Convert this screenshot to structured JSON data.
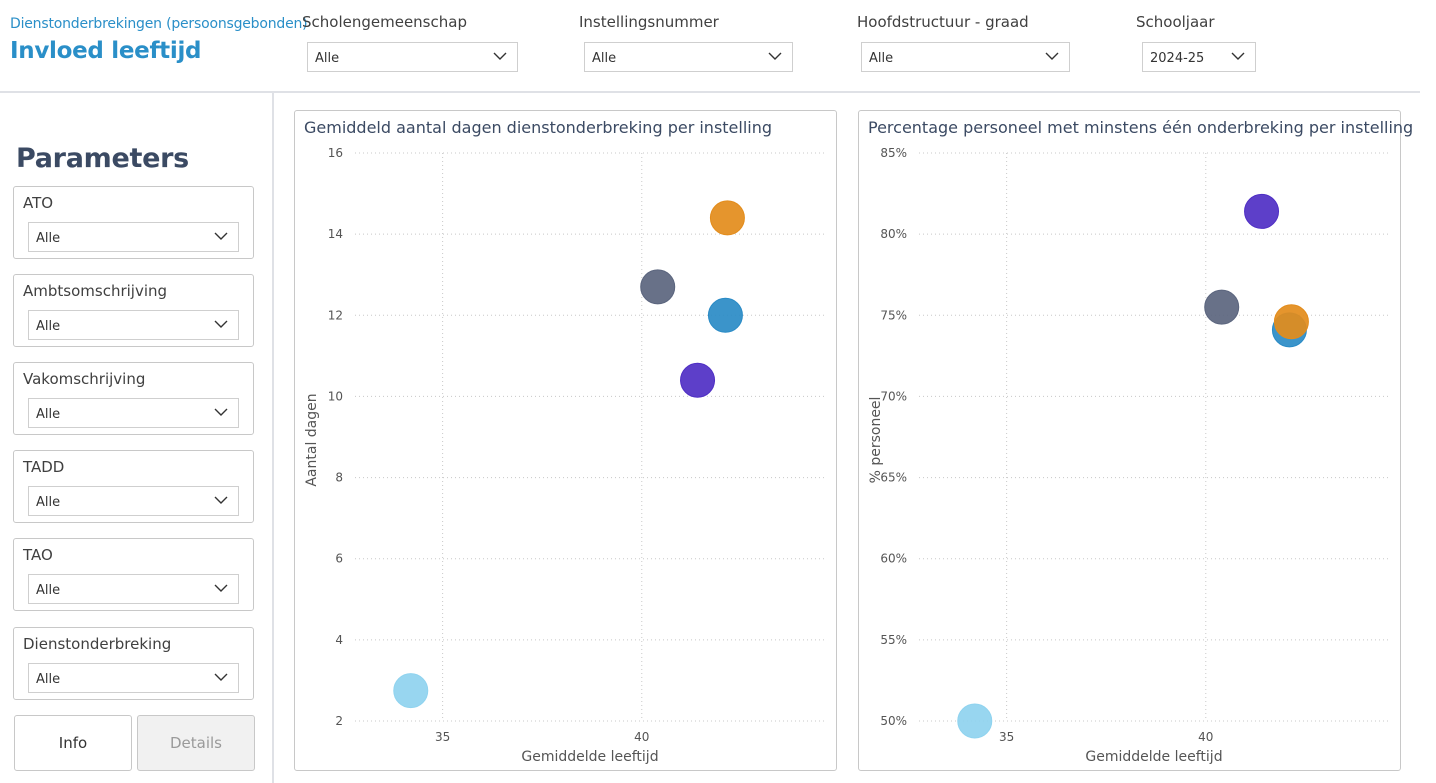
{
  "header": {
    "subtitle": "Dienstonderbrekingen (persoonsgebonden)",
    "title": "Invloed leeftijd"
  },
  "filters": [
    {
      "label": "Scholengemeenschap",
      "value": "Alle"
    },
    {
      "label": "Instellingsnummer",
      "value": "Alle"
    },
    {
      "label": "Hoofdstructuur - graad",
      "value": "Alle"
    },
    {
      "label": "Schooljaar",
      "value": "2024-25"
    }
  ],
  "parameters": {
    "title": "Parameters",
    "slicers": [
      {
        "label": "ATO",
        "value": "Alle"
      },
      {
        "label": "Ambtsomschrijving",
        "value": "Alle"
      },
      {
        "label": "Vakomschrijving",
        "value": "Alle"
      },
      {
        "label": "TADD",
        "value": "Alle"
      },
      {
        "label": "TAO",
        "value": "Alle"
      },
      {
        "label": "Dienstonderbreking",
        "value": "Alle"
      }
    ]
  },
  "buttons": {
    "info": "Info",
    "details": "Details"
  },
  "icons": {
    "dropdown": "chevron-down-icon"
  },
  "colors": {
    "accent": "#2a8fc8",
    "series": [
      "#8fd3ef",
      "#5b657e",
      "#4f2fc4",
      "#2a8bc6",
      "#e38c1b"
    ]
  },
  "chart_data": [
    {
      "type": "scatter",
      "title": "Gemiddeld aantal dagen dienstonderbreking per instelling",
      "xlabel": "Gemiddelde leeftijd",
      "ylabel": "Aantal dagen",
      "xlim": [
        32.8,
        44.6
      ],
      "ylim": [
        2,
        16
      ],
      "xticks": [
        35,
        40
      ],
      "yticks": [
        2,
        4,
        6,
        8,
        10,
        12,
        14,
        16
      ],
      "ytick_labels": [
        "2",
        "4",
        "6",
        "8",
        "10",
        "12",
        "14",
        "16"
      ],
      "grid": true,
      "points": [
        {
          "x": 34.2,
          "y": 2.75,
          "color": "#8fd3ef"
        },
        {
          "x": 40.4,
          "y": 12.7,
          "color": "#5b657e"
        },
        {
          "x": 41.4,
          "y": 10.4,
          "color": "#4f2fc4"
        },
        {
          "x": 42.1,
          "y": 12.0,
          "color": "#2a8bc6"
        },
        {
          "x": 42.15,
          "y": 14.4,
          "color": "#e38c1b"
        }
      ]
    },
    {
      "type": "scatter",
      "title": "Percentage personeel met minstens één onderbreking per instelling",
      "xlabel": "Gemiddelde leeftijd",
      "ylabel": "% personeel",
      "xlim": [
        32.8,
        44.6
      ],
      "ylim": [
        50,
        85
      ],
      "xticks": [
        35,
        40
      ],
      "yticks": [
        50,
        55,
        60,
        65,
        70,
        75,
        80,
        85
      ],
      "ytick_labels": [
        "50%",
        "55%",
        "60%",
        "65%",
        "70%",
        "75%",
        "80%",
        "85%"
      ],
      "grid": true,
      "points": [
        {
          "x": 34.2,
          "y": 50.0,
          "color": "#8fd3ef"
        },
        {
          "x": 40.4,
          "y": 75.5,
          "color": "#5b657e"
        },
        {
          "x": 41.4,
          "y": 81.4,
          "color": "#4f2fc4"
        },
        {
          "x": 42.1,
          "y": 74.1,
          "color": "#2a8bc6"
        },
        {
          "x": 42.15,
          "y": 74.6,
          "color": "#e38c1b"
        }
      ]
    }
  ]
}
